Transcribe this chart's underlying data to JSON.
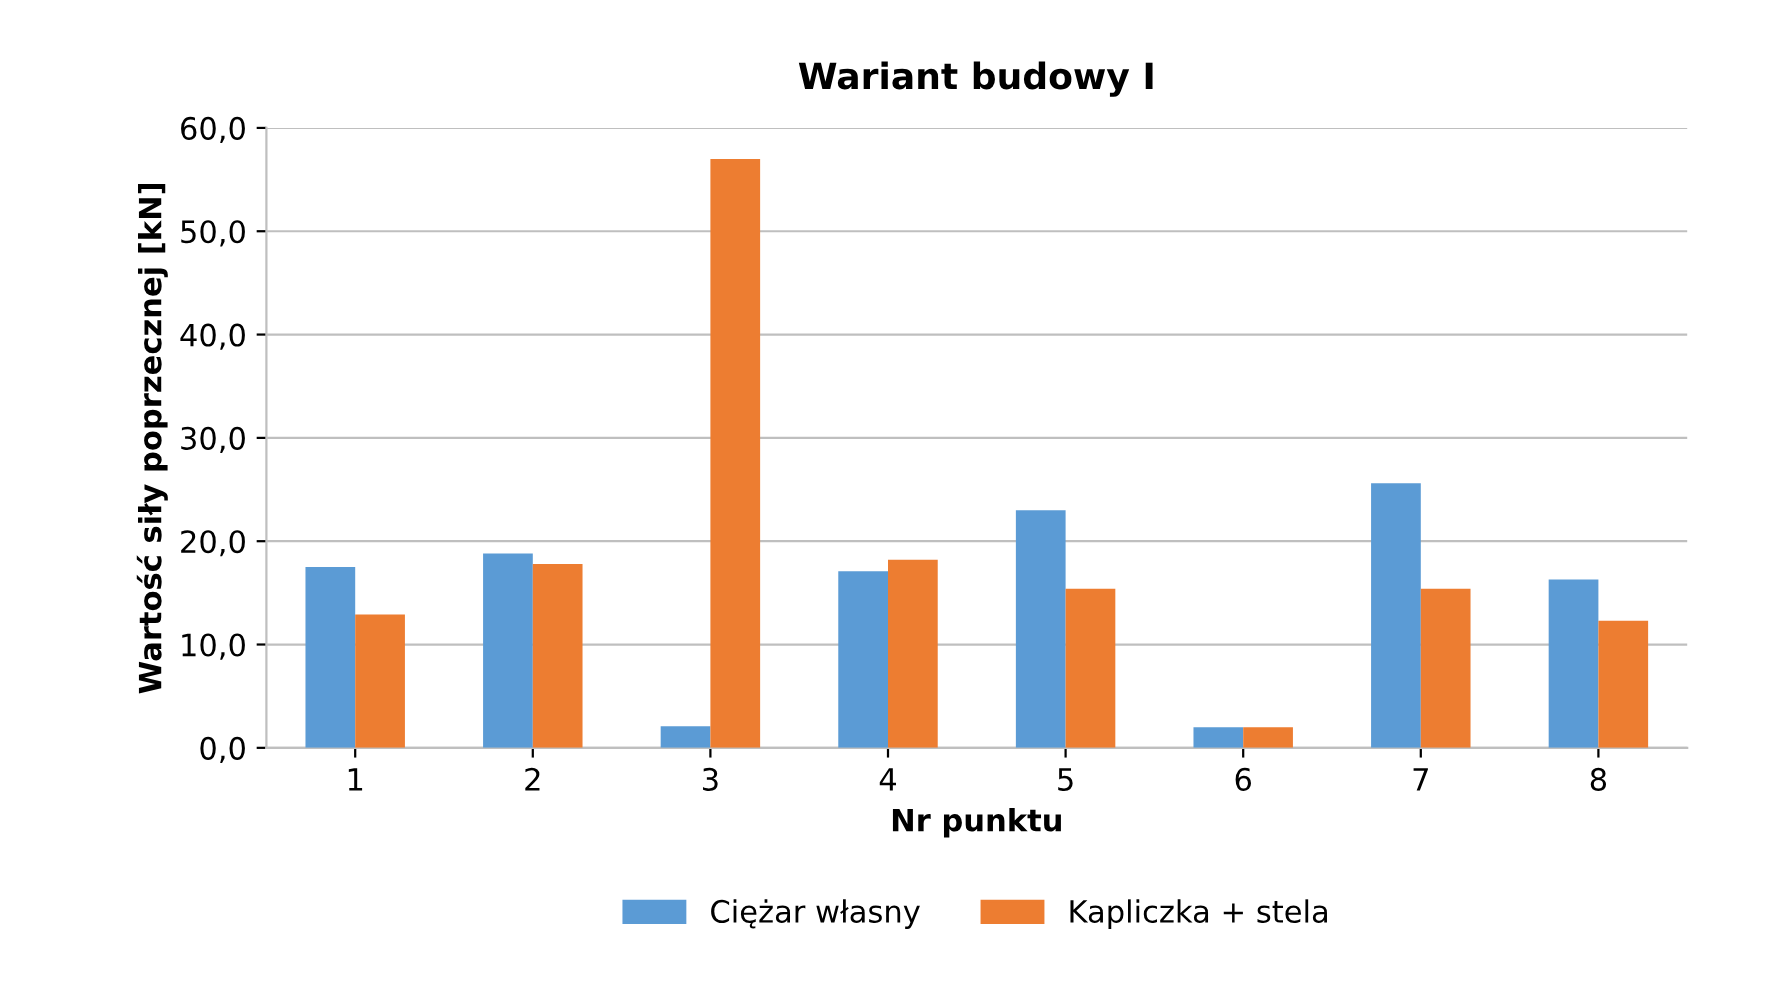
{
  "chart_data": {
    "type": "bar",
    "title": "Wariant budowy I",
    "xlabel": "Nr punktu",
    "ylabel": "Wartość siły poprzecznej [kN]",
    "categories": [
      "1",
      "2",
      "3",
      "4",
      "5",
      "6",
      "7",
      "8"
    ],
    "series": [
      {
        "name": "Ciężar własny",
        "color": "#5b9bd5",
        "values": [
          17.5,
          18.8,
          2.1,
          17.1,
          23.0,
          2.0,
          25.6,
          16.3
        ]
      },
      {
        "name": "Kapliczka + stela",
        "color": "#ed7d31",
        "values": [
          12.9,
          17.8,
          57.0,
          18.2,
          15.4,
          2.0,
          15.4,
          12.3
        ]
      }
    ],
    "ylim": [
      0,
      60
    ],
    "yticks": [
      {
        "value": 0,
        "label": "0,0"
      },
      {
        "value": 10,
        "label": "10,0"
      },
      {
        "value": 20,
        "label": "20,0"
      },
      {
        "value": 30,
        "label": "30,0"
      },
      {
        "value": 40,
        "label": "40,0"
      },
      {
        "value": 50,
        "label": "50,0"
      },
      {
        "value": 60,
        "label": "60,0"
      }
    ],
    "grid": "y",
    "legend": "bottom"
  }
}
